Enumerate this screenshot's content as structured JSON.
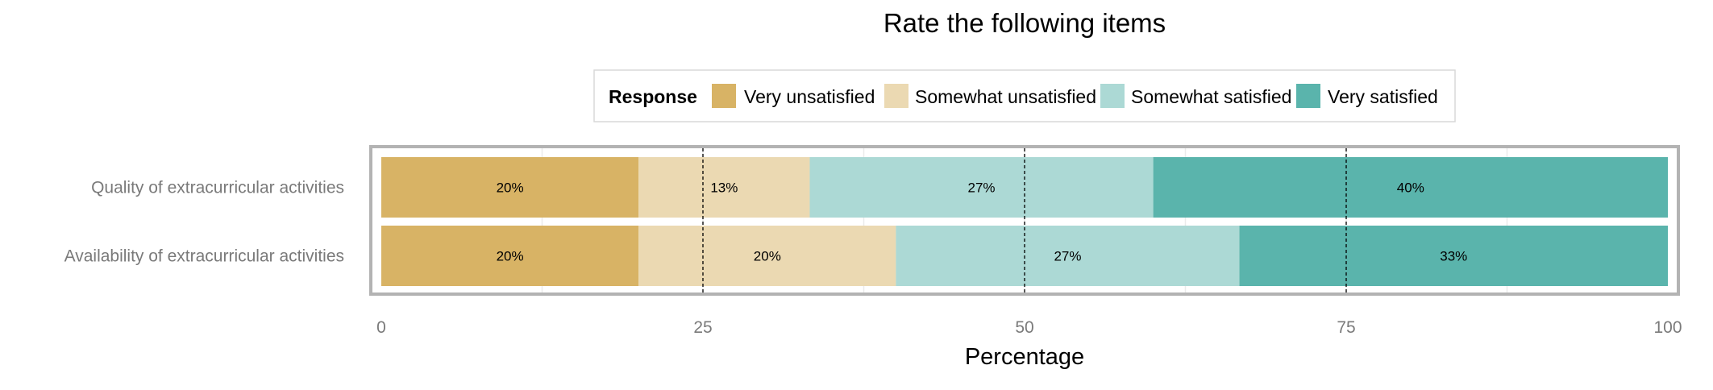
{
  "chart_data": {
    "type": "bar",
    "orientation": "horizontal",
    "stacked": true,
    "title": "Rate the following items",
    "xlabel": "Percentage",
    "ylabel": "",
    "xlim": [
      0,
      100
    ],
    "x_ticks": [
      0,
      25,
      50,
      75,
      100
    ],
    "reference_lines": [
      25,
      50,
      75
    ],
    "grid": true,
    "legend": {
      "title": "Response",
      "position": "top",
      "entries": [
        "Very unsatisfied",
        "Somewhat unsatisfied",
        "Somewhat satisfied",
        "Very satisfied"
      ]
    },
    "categories": [
      "Quality of extracurricular activities",
      "Availability of extracurricular activities"
    ],
    "series": [
      {
        "name": "Very unsatisfied",
        "color": "#d8b365",
        "values": [
          20,
          20
        ],
        "labels": [
          "20%",
          "20%"
        ]
      },
      {
        "name": "Somewhat unsatisfied",
        "color": "#ebd9b2",
        "values": [
          13.3,
          20
        ],
        "labels": [
          "13%",
          "20%"
        ]
      },
      {
        "name": "Somewhat satisfied",
        "color": "#acd9d5",
        "values": [
          26.7,
          26.7
        ],
        "labels": [
          "27%",
          "27%"
        ]
      },
      {
        "name": "Very satisfied",
        "color": "#5ab4ac",
        "values": [
          40,
          33.3
        ],
        "labels": [
          "40%",
          "33%"
        ]
      }
    ]
  }
}
